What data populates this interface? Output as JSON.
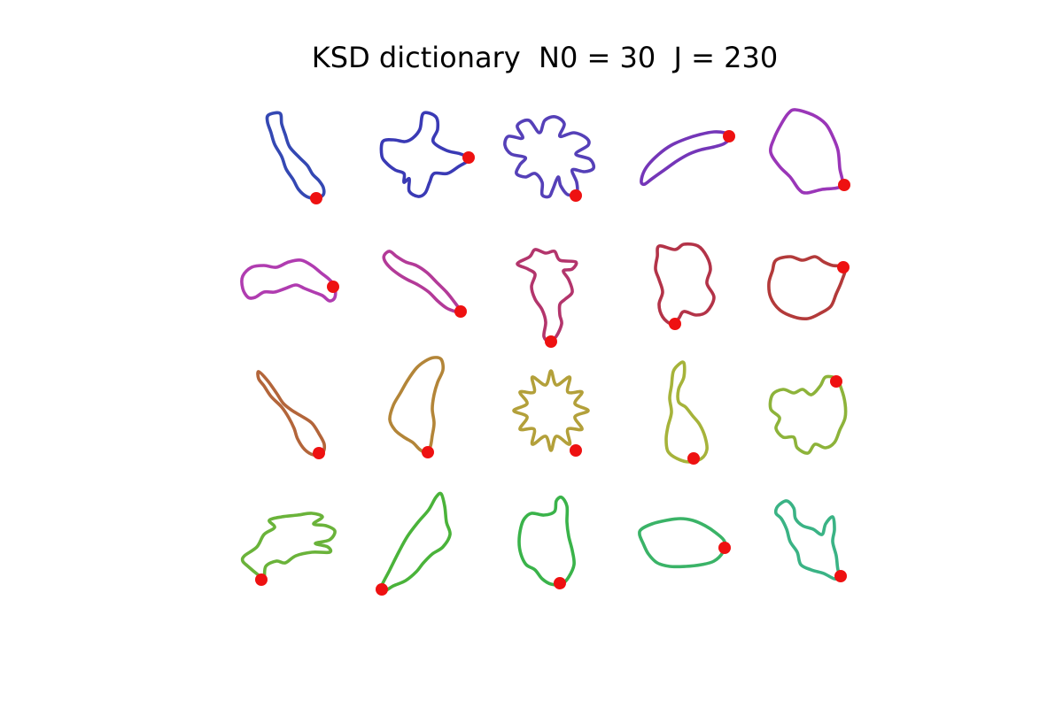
{
  "figure": {
    "title": "KSD dictionary  N0 = 30  J = 230",
    "grid": {
      "rows": 4,
      "cols": 5
    },
    "start_marker_color": "#ee1111"
  },
  "shapes": [
    {
      "id": 1,
      "row": 1,
      "col": 1,
      "color": "#3448b3",
      "outline": "elongated-leaf"
    },
    {
      "id": 2,
      "row": 1,
      "col": 2,
      "color": "#3a3ab5",
      "outline": "four-arm-cross"
    },
    {
      "id": 3,
      "row": 1,
      "col": 3,
      "color": "#5540b8",
      "outline": "nine-lobe-flower"
    },
    {
      "id": 4,
      "row": 1,
      "col": 4,
      "color": "#7436b8",
      "outline": "crescent"
    },
    {
      "id": 5,
      "row": 1,
      "col": 5,
      "color": "#9a36b8",
      "outline": "pentagon-frame"
    },
    {
      "id": 6,
      "row": 2,
      "col": 1,
      "color": "#b03cb0",
      "outline": "wavy-bar"
    },
    {
      "id": 7,
      "row": 2,
      "col": 2,
      "color": "#b33a98",
      "outline": "diagonal-fish"
    },
    {
      "id": 8,
      "row": 2,
      "col": 3,
      "color": "#b3356c",
      "outline": "bird-head"
    },
    {
      "id": 9,
      "row": 2,
      "col": 4,
      "color": "#b33348",
      "outline": "irregular-blob"
    },
    {
      "id": 10,
      "row": 2,
      "col": 5,
      "color": "#b33a3a",
      "outline": "rounded-blob"
    },
    {
      "id": 11,
      "row": 3,
      "col": 1,
      "color": "#b3653a",
      "outline": "guitar"
    },
    {
      "id": 12,
      "row": 3,
      "col": 2,
      "color": "#b38538",
      "outline": "tall-leaf"
    },
    {
      "id": 13,
      "row": 3,
      "col": 3,
      "color": "#b3a03a",
      "outline": "twelve-point-star"
    },
    {
      "id": 14,
      "row": 3,
      "col": 4,
      "color": "#a6b33a",
      "outline": "seahorse"
    },
    {
      "id": 15,
      "row": 3,
      "col": 5,
      "color": "#8db33a",
      "outline": "bird"
    },
    {
      "id": 16,
      "row": 4,
      "col": 1,
      "color": "#6ab33a",
      "outline": "flying-bird"
    },
    {
      "id": 17,
      "row": 4,
      "col": 2,
      "color": "#4ab33a",
      "outline": "diagonal-leaf"
    },
    {
      "id": 18,
      "row": 4,
      "col": 3,
      "color": "#3ab34a",
      "outline": "flask"
    },
    {
      "id": 19,
      "row": 4,
      "col": 4,
      "color": "#3ab367",
      "outline": "horizontal-oval"
    },
    {
      "id": 20,
      "row": 4,
      "col": 5,
      "color": "#3ab385",
      "outline": "rabbit"
    }
  ]
}
